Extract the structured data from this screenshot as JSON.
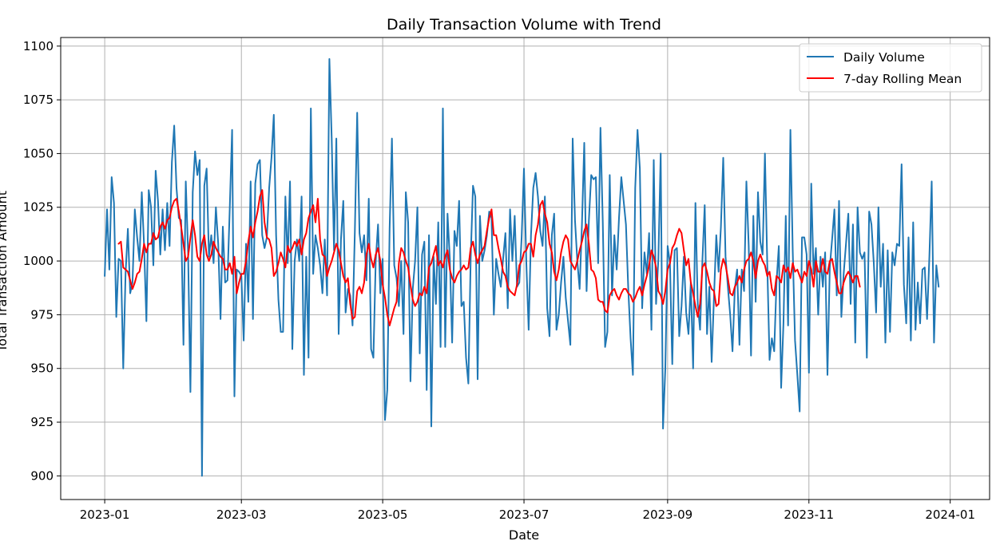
{
  "chart_data": {
    "type": "line",
    "title": "Daily Transaction Volume with Trend",
    "xlabel": "Date",
    "ylabel": "Total Transaction Amount",
    "x_ticks": [
      "2023-01",
      "2023-03",
      "2023-05",
      "2023-07",
      "2023-09",
      "2023-11",
      "2024-01"
    ],
    "y_ticks": [
      900,
      925,
      950,
      975,
      1000,
      1025,
      1050,
      1075,
      1100
    ],
    "x_range": [
      "2022-12-13",
      "2024-01-18"
    ],
    "ylim": [
      889,
      1104
    ],
    "grid": true,
    "legend_position": "top-right",
    "series": [
      {
        "name": "Daily Volume",
        "color": "#1f77b4",
        "x_start": "2023-01-01",
        "step_days": 1,
        "values": [
          993,
          1024,
          996,
          1039,
          1027,
          974,
          1001,
          1000,
          950,
          994,
          1015,
          985,
          990,
          1024,
          1011,
          1000,
          1032,
          1007,
          972,
          1033,
          1025,
          998,
          1042,
          1028,
          1003,
          1024,
          1005,
          1027,
          1007,
          1046,
          1063,
          1034,
          1020,
          1019,
          961,
          1037,
          1004,
          939,
          1032,
          1051,
          1040,
          1047,
          900,
          1035,
          1043,
          1002,
          1012,
          999,
          1025,
          1008,
          973,
          1016,
          990,
          991,
          1025,
          1061,
          937,
          996,
          995,
          993,
          963,
          1008,
          981,
          1037,
          973,
          1036,
          1045,
          1047,
          1012,
          1006,
          1011,
          1034,
          1048,
          1068,
          1012,
          982,
          967,
          967,
          1030,
          999,
          1037,
          959,
          1000,
          1010,
          1000,
          1030,
          947,
          1002,
          955,
          1071,
          994,
          1012,
          1006,
          998,
          985,
          1010,
          984,
          1094,
          1057,
          1005,
          1057,
          966,
          1010,
          1028,
          976,
          987,
          984,
          970,
          1014,
          1069,
          1013,
          1004,
          1012,
          991,
          1029,
          959,
          955,
          1000,
          1017,
          985,
          1001,
          926,
          940,
          1015,
          1057,
          998,
          992,
          979,
          1000,
          966,
          1032,
          1018,
          944,
          987,
          1000,
          1025,
          957,
          1003,
          1009,
          940,
          1012,
          923,
          1002,
          980,
          1018,
          960,
          1071,
          960,
          1022,
          1001,
          962,
          1014,
          1007,
          1028,
          979,
          981,
          955,
          943,
          1001,
          1035,
          1030,
          945,
          1021,
          1000,
          1005,
          1012,
          1023,
          1020,
          975,
          1001,
          994,
          988,
          1001,
          1013,
          978,
          1024,
          1000,
          1021,
          988,
          990,
          1011,
          1043,
          999,
          968,
          1012,
          1034,
          1041,
          1030,
          1014,
          1007,
          1030,
          978,
          965,
          1012,
          1022,
          968,
          975,
          990,
          1002,
          983,
          972,
          961,
          1057,
          1019,
          1000,
          987,
          1017,
          1055,
          986,
          1019,
          1040,
          1038,
          1039,
          999,
          1062,
          1018,
          960,
          967,
          1040,
          984,
          1012,
          996,
          1020,
          1039,
          1028,
          1017,
          987,
          964,
          947,
          1034,
          1061,
          1043,
          978,
          1004,
          994,
          1013,
          968,
          1047,
          980,
          1001,
          1050,
          922,
          950,
          1007,
          999,
          952,
          1005,
          1006,
          965,
          979,
          1002,
          976,
          966,
          990,
          950,
          1027,
          980,
          968,
          1000,
          1026,
          966,
          988,
          953,
          983,
          1012,
          995,
          1016,
          1048,
          1002,
          988,
          975,
          958,
          987,
          996,
          961,
          996,
          986,
          1037,
          1007,
          956,
          1021,
          981,
          1032,
          1009,
          1003,
          1050,
          999,
          954,
          964,
          958,
          990,
          1007,
          941,
          971,
          1021,
          970,
          1061,
          1005,
          963,
          947,
          930,
          1011,
          1011,
          1003,
          948,
          1036,
          994,
          1006,
          975,
          1002,
          988,
          1004,
          947,
          997,
          1010,
          1024,
          984,
          1028,
          974,
          994,
          1008,
          1022,
          980,
          1017,
          962,
          1025,
          1004,
          1001,
          1004,
          955,
          1023,
          1017,
          999,
          976,
          1025,
          988,
          1008,
          962,
          1005,
          967,
          1004,
          998,
          1008,
          1007,
          1045,
          989,
          971,
          1011,
          963,
          1018,
          968,
          990,
          971,
          996,
          997,
          973,
          1002,
          1037,
          962,
          998,
          988
        ]
      },
      {
        "name": "7-day Rolling Mean",
        "color": "#ff0000",
        "x_start": "2023-01-07",
        "step_days": 1,
        "values": [
          1008,
          1009,
          997,
          996,
          995,
          991,
          987,
          990,
          994,
          995,
          1001,
          1008,
          1004,
          1008,
          1008,
          1013,
          1010,
          1011,
          1016,
          1018,
          1015,
          1019,
          1020,
          1025,
          1028,
          1029,
          1023,
          1016,
          1008,
          1000,
          1002,
          1011,
          1019,
          1012,
          1002,
          1000,
          1008,
          1012,
          1003,
          1000,
          1003,
          1009,
          1006,
          1004,
          1002,
          1001,
          996,
          996,
          999,
          994,
          1002,
          985,
          990,
          994,
          994,
          1000,
          1009,
          1016,
          1011,
          1018,
          1023,
          1030,
          1033,
          1018,
          1011,
          1010,
          1006,
          993,
          995,
          999,
          1004,
          1001,
          997,
          1007,
          1004,
          1006,
          1009,
          1007,
          1010,
          1003,
          1010,
          1013,
          1020,
          1023,
          1026,
          1018,
          1029,
          1010,
          1003,
          1002,
          993,
          997,
          1000,
          1004,
          1008,
          1005,
          999,
          993,
          990,
          992,
          980,
          973,
          974,
          986,
          988,
          985,
          990,
          1003,
          1008,
          1001,
          997,
          1003,
          1006,
          1000,
          989,
          983,
          975,
          970,
          974,
          978,
          981,
          999,
          1006,
          1004,
          1000,
          997,
          989,
          982,
          979,
          981,
          985,
          984,
          988,
          985,
          997,
          999,
          1003,
          1007,
          998,
          1000,
          997,
          1002,
          1005,
          996,
          992,
          990,
          993,
          995,
          996,
          998,
          996,
          997,
          1006,
          1009,
          1003,
          999,
          1003,
          1005,
          1007,
          1014,
          1020,
          1024,
          1012,
          1012,
          1006,
          1001,
          995,
          993,
          988,
          986,
          985,
          984,
          989,
          998,
          1000,
          1004,
          1005,
          1008,
          1008,
          1002,
          1012,
          1017,
          1026,
          1028,
          1022,
          1018,
          1008,
          1004,
          995,
          991,
          996,
          1004,
          1009,
          1012,
          1010,
          1000,
          998,
          996,
          1000,
          1005,
          1009,
          1014,
          1017,
          1008,
          996,
          995,
          992,
          982,
          981,
          981,
          977,
          976,
          984,
          986,
          987,
          984,
          982,
          985,
          987,
          987,
          985,
          984,
          981,
          983,
          986,
          988,
          984,
          989,
          993,
          998,
          1005,
          1002,
          997,
          986,
          984,
          980,
          986,
          996,
          999,
          1006,
          1008,
          1012,
          1015,
          1013,
          1005,
          998,
          1001,
          990,
          985,
          979,
          974,
          980,
          997,
          999,
          995,
          990,
          987,
          986,
          979,
          980,
          996,
          1001,
          998,
          992,
          985,
          984,
          988,
          990,
          993,
          990,
          996,
          1000,
          1001,
          1004,
          1000,
          992,
          1000,
          1003,
          1000,
          998,
          993,
          995,
          987,
          984,
          993,
          992,
          990,
          998,
          995,
          997,
          992,
          999,
          995,
          996,
          993,
          990,
          995,
          993,
          1000,
          996,
          988,
          1000,
          995,
          995,
          1001,
          995,
          994,
          1000,
          1001,
          995,
          990,
          985,
          985,
          990,
          993,
          995,
          993,
          990,
          993,
          993,
          988
        ]
      }
    ]
  }
}
